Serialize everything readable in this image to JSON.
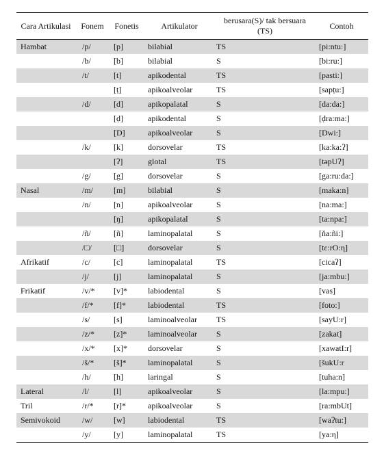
{
  "columns": {
    "cara": "Cara Artikulasi",
    "fonem": "Fonem",
    "fonetis": "Fonetis",
    "artik": "Artikulator",
    "suara": "berusara(S)/ tak bersuara (TS)",
    "contoh": "Contoh"
  },
  "rows": [
    {
      "shaded": true,
      "cara": "Hambat",
      "fonem": "/p/",
      "fonetis": "[p]",
      "artik": "bilabial",
      "suara": "TS",
      "contoh": "[pi:ntu:]"
    },
    {
      "shaded": false,
      "cara": "",
      "fonem": "/b/",
      "fonetis": "[b]",
      "artik": "bilabial",
      "suara": "S",
      "contoh": "[bi:ru:]"
    },
    {
      "shaded": true,
      "cara": "",
      "fonem": "/t/",
      "fonetis": "[t]",
      "artik": "apikodental",
      "suara": "TS",
      "contoh": "[pasti:]"
    },
    {
      "shaded": false,
      "cara": "",
      "fonem": "",
      "fonetis": "[ṭ]",
      "artik": "apikoalveolar",
      "suara": "TS",
      "contoh": "[sapṭu:]"
    },
    {
      "shaded": true,
      "cara": "",
      "fonem": "/d/",
      "fonetis": "[d]",
      "artik": "apikopalatal",
      "suara": "S",
      "contoh": "[da:da:]"
    },
    {
      "shaded": false,
      "cara": "",
      "fonem": "",
      "fonetis": "[ḍ]",
      "artik": "apikodental",
      "suara": "S",
      "contoh": "[ḍra:ma:]"
    },
    {
      "shaded": true,
      "cara": "",
      "fonem": "",
      "fonetis": "[D]",
      "artik": "apikoalveolar",
      "suara": "S",
      "contoh": "[Dwi:]"
    },
    {
      "shaded": false,
      "cara": "",
      "fonem": "/k/",
      "fonetis": "[k]",
      "artik": "dorsovelar",
      "suara": "TS",
      "contoh": "[ka:ka:ʔ]"
    },
    {
      "shaded": true,
      "cara": "",
      "fonem": "",
      "fonetis": "[ʔ]",
      "artik": "glotal",
      "suara": "TS",
      "contoh": "[təpUʔ]"
    },
    {
      "shaded": false,
      "cara": "",
      "fonem": "/g/",
      "fonetis": "[g]",
      "artik": "dorsovelar",
      "suara": "S",
      "contoh": "[ga:ru:da:]"
    },
    {
      "shaded": true,
      "cara": "Nasal",
      "fonem": "/m/",
      "fonetis": "[m]",
      "artik": "bilabial",
      "suara": "S",
      "contoh": "[maka:n]"
    },
    {
      "shaded": false,
      "cara": "",
      "fonem": "/n/",
      "fonetis": "[n]",
      "artik": "apikoalveolar",
      "suara": "S",
      "contoh": "[na:ma:]"
    },
    {
      "shaded": true,
      "cara": "",
      "fonem": "",
      "fonetis": "[ŋ]",
      "artik": "apikopalatal",
      "suara": "S",
      "contoh": "[ta:npa:]"
    },
    {
      "shaded": false,
      "cara": "",
      "fonem": "/ñ/",
      "fonetis": "[ñ]",
      "artik": "laminopalatal",
      "suara": "S",
      "contoh": "[ňa:ñi:]"
    },
    {
      "shaded": true,
      "cara": "",
      "fonem": "/□/",
      "fonetis": "[□]",
      "artik": "dorsovelar",
      "suara": "S",
      "contoh": "[tɛ:rO:η]"
    },
    {
      "shaded": false,
      "cara": "Afrikatif",
      "fonem": "/c/",
      "fonetis": "[c]",
      "artik": "laminopalatal",
      "suara": "TS",
      "contoh": "[cicaʔ]"
    },
    {
      "shaded": true,
      "cara": "",
      "fonem": "/j/",
      "fonetis": "[j]",
      "artik": "laminopalatal",
      "suara": "S",
      "contoh": "[ja:mbu:]"
    },
    {
      "shaded": false,
      "cara": "Frikatif",
      "fonem": "/v/*",
      "fonetis": "[v]*",
      "artik": "labiodental",
      "suara": "S",
      "contoh": "[vas]"
    },
    {
      "shaded": true,
      "cara": "",
      "fonem": "/f/*",
      "fonetis": "[f]*",
      "artik": "labiodental",
      "suara": "TS",
      "contoh": "[foto:]"
    },
    {
      "shaded": false,
      "cara": "",
      "fonem": "/s/",
      "fonetis": "[s]",
      "artik": "laminoalveolar",
      "suara": "TS",
      "contoh": "[sayU:r]"
    },
    {
      "shaded": true,
      "cara": "",
      "fonem": "/z/*",
      "fonetis": "[z]*",
      "artik": "laminoalveolar",
      "suara": "S",
      "contoh": "[zakat]"
    },
    {
      "shaded": false,
      "cara": "",
      "fonem": "/x/*",
      "fonetis": "[x]*",
      "artik": "dorsovelar",
      "suara": "S",
      "contoh": "[xawatI:r]"
    },
    {
      "shaded": true,
      "cara": "",
      "fonem": "/š/*",
      "fonetis": "[š]*",
      "artik": "laminopalatal",
      "suara": "S",
      "contoh": "[šukU:r"
    },
    {
      "shaded": false,
      "cara": "",
      "fonem": "/h/",
      "fonetis": "[h]",
      "artik": "laringal",
      "suara": "S",
      "contoh": "[tuha:n]"
    },
    {
      "shaded": true,
      "cara": "Lateral",
      "fonem": "/l/",
      "fonetis": "[l]",
      "artik": "apikoalveolar",
      "suara": "S",
      "contoh": "[la:mpu:]"
    },
    {
      "shaded": false,
      "cara": "Tril",
      "fonem": "/r/*",
      "fonetis": "[r]*",
      "artik": "apikoalveolar",
      "suara": "S",
      "contoh": "[ra:mbUt]"
    },
    {
      "shaded": true,
      "cara": "Semivokoid",
      "fonem": "/w/",
      "fonetis": "[w]",
      "artik": "labiodental",
      "suara": "TS",
      "contoh": "[waʔtu:]"
    },
    {
      "shaded": false,
      "cara": "",
      "fonem": "/y/",
      "fonetis": "[y]",
      "artik": "laminopalatal",
      "suara": "TS",
      "contoh": "[ya:η]"
    }
  ]
}
